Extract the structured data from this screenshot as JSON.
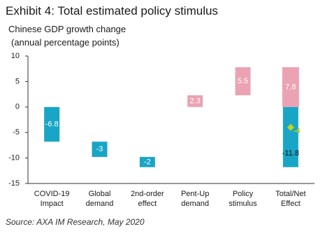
{
  "chart_data": {
    "type": "waterfall",
    "title": "Exhibit 4: Total estimated policy stimulus",
    "ylabel": [
      "Chinese GDP growth change",
      "(annual percentage points)"
    ],
    "categories": [
      "COVID-19 Impact",
      "Global demand",
      "2nd-order effect",
      "Pent-Up demand",
      "Policy stimulus"
    ],
    "values": [
      -6.8,
      -3,
      -2,
      2.3,
      5.5
    ],
    "total_category": "Total/Net Effect",
    "total": {
      "positive": 7.8,
      "negative": -11.8,
      "net": -4
    },
    "negative_color": "#19a5c6",
    "positive_color": "#eba3b3",
    "net_color": "#c6d41a",
    "ylim": [
      -15,
      10
    ],
    "yticks": [
      -15,
      -10,
      -5,
      0,
      5,
      10
    ],
    "source": "Source: AXA IM Research, May 2020"
  }
}
